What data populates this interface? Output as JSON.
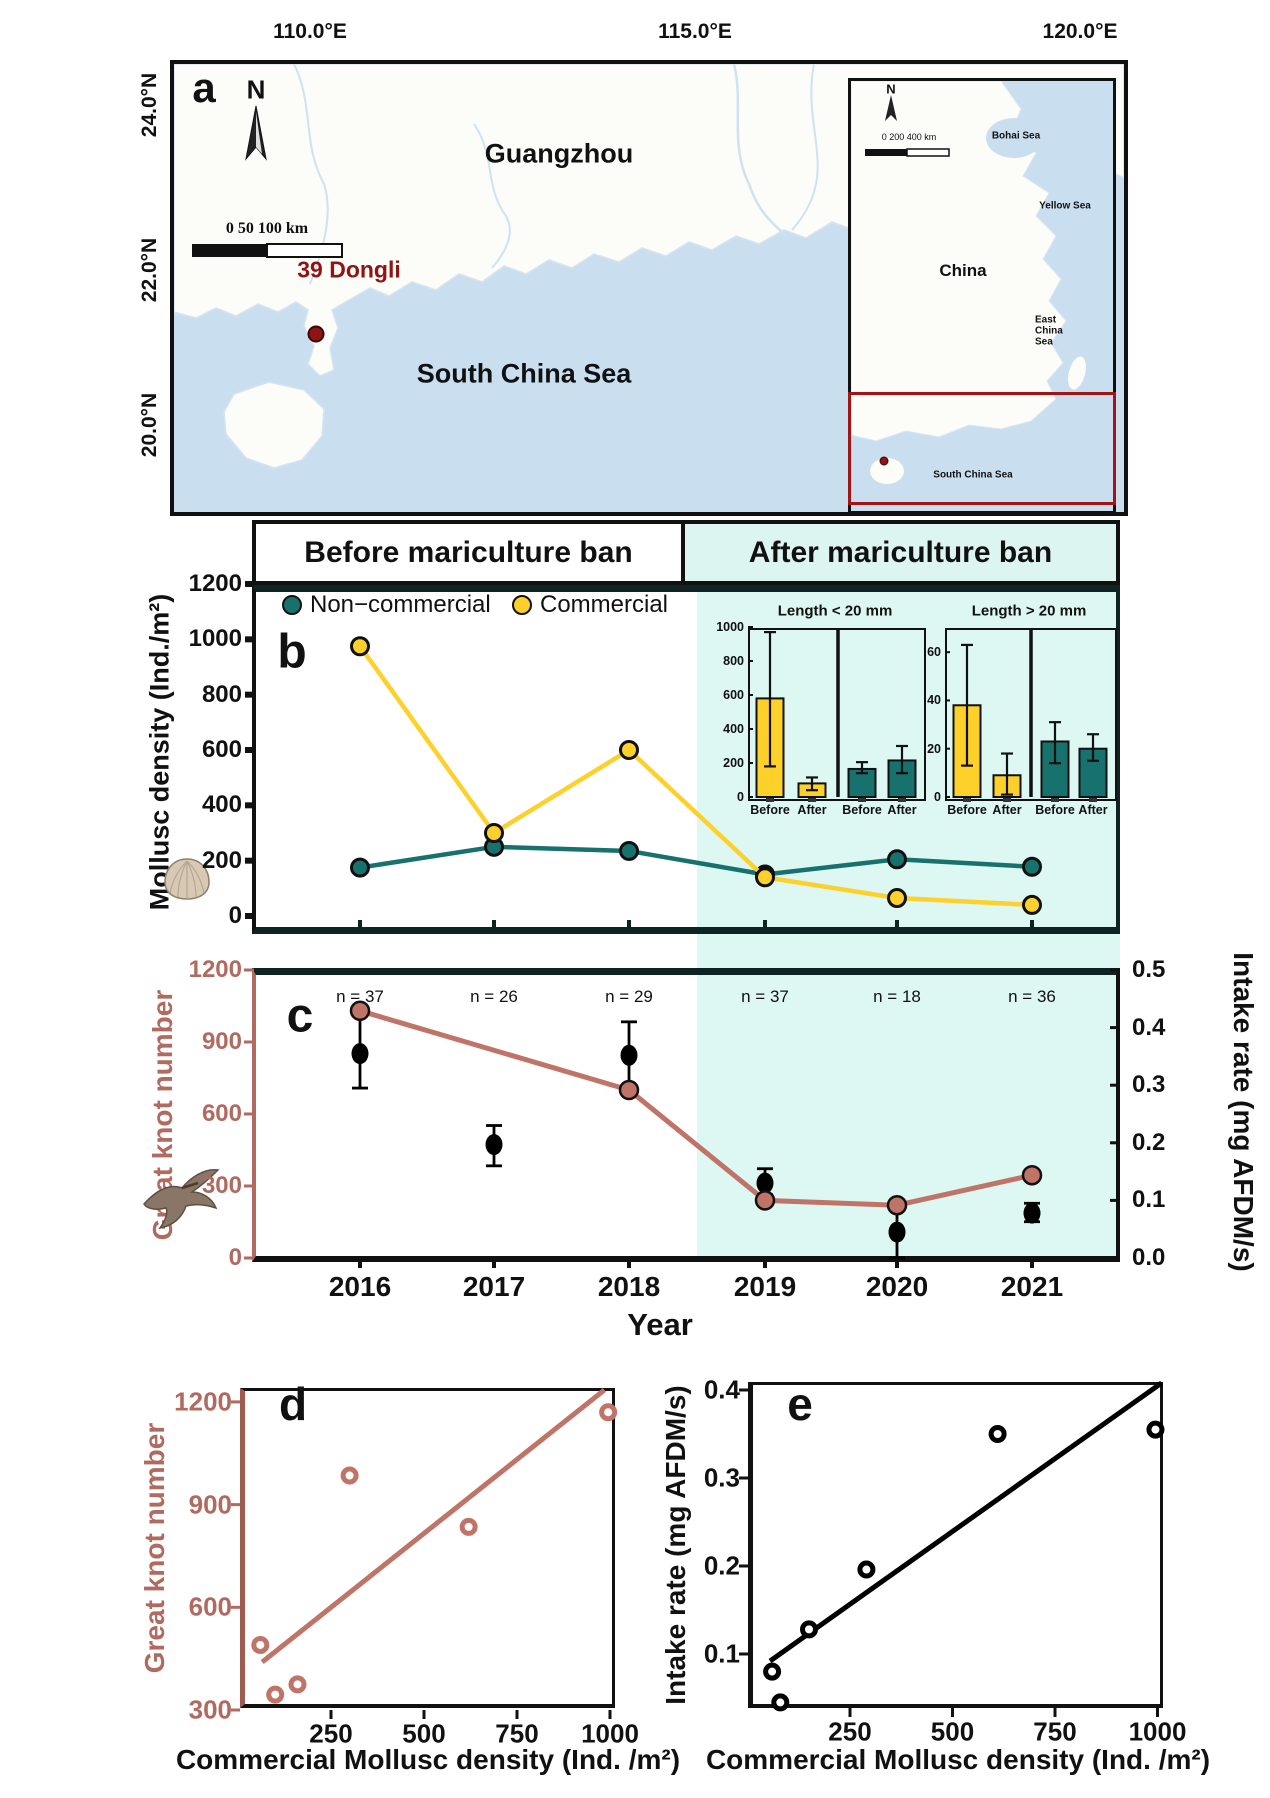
{
  "figure": {
    "colors": {
      "teal": "#17716c",
      "yellow": "#fdd02a",
      "salmon": "#c07468",
      "after_ban_bg": "#ddf7f3",
      "site_marker": "#8e1513",
      "sea": "#c9dff0"
    },
    "panel_a": {
      "label": "a",
      "top_axis_labels": [
        "110.0°E",
        "115.0°E",
        "120.0°E"
      ],
      "left_axis_labels": [
        "24.0°N",
        "22.0°N",
        "20.0°N"
      ],
      "north_label": "N",
      "scale_text": "0    50   100 km",
      "labels": {
        "city": "Guangzhou",
        "site": "39 Dongli",
        "sea": "South China Sea"
      },
      "inset": {
        "north_label": "N",
        "scale_text": "0   200   400 km",
        "country": "China",
        "seas": [
          "Bohai Sea",
          "Yellow Sea",
          "East China Sea",
          "South China Sea"
        ]
      }
    },
    "panel_b": {
      "label": "b",
      "header_before": "Before mariculture ban",
      "header_after": "After mariculture ban"
    },
    "panel_c": {
      "label": "c"
    },
    "panel_d": {
      "label": "d"
    },
    "panel_e": {
      "label": "e"
    }
  },
  "chart_data": [
    {
      "id": "b",
      "type": "line",
      "ylabel": "Mollusc density (Ind./m²)",
      "ylim": [
        0,
        1200
      ],
      "yticks": [
        0,
        200,
        400,
        600,
        800,
        1000,
        1200
      ],
      "categories": [
        "2016",
        "2017",
        "2018",
        "2019",
        "2020",
        "2021"
      ],
      "series": [
        {
          "name": "Non−commercial",
          "color": "#17716c",
          "values": [
            175,
            250,
            235,
            150,
            205,
            178
          ]
        },
        {
          "name": "Commercial",
          "color": "#fdd02a",
          "values": [
            975,
            300,
            600,
            140,
            65,
            40
          ]
        }
      ],
      "ban_divider_after_category": "2018"
    },
    {
      "id": "b_inset_small",
      "type": "bar",
      "title": "Length < 20 mm",
      "ylim": [
        0,
        1000
      ],
      "yticks": [
        0,
        200,
        400,
        600,
        800,
        1000
      ],
      "bars": [
        {
          "label": "Before",
          "group": "Commercial",
          "color": "#fdd02a",
          "value": 580,
          "err": [
            180,
            970
          ]
        },
        {
          "label": "After",
          "group": "Commercial",
          "color": "#fdd02a",
          "value": 80,
          "err": [
            40,
            115
          ]
        },
        {
          "label": "Before",
          "group": "Non-commercial",
          "color": "#17716c",
          "value": 165,
          "err": [
            140,
            205
          ]
        },
        {
          "label": "After",
          "group": "Non-commercial",
          "color": "#17716c",
          "value": 215,
          "err": [
            140,
            300
          ]
        }
      ]
    },
    {
      "id": "b_inset_large",
      "type": "bar",
      "title": "Length > 20 mm",
      "ylim": [
        0,
        70
      ],
      "yticks": [
        0,
        20,
        40,
        60
      ],
      "bars": [
        {
          "label": "Before",
          "group": "Commercial",
          "color": "#fdd02a",
          "value": 38,
          "err": [
            13,
            63
          ]
        },
        {
          "label": "After",
          "group": "Commercial",
          "color": "#fdd02a",
          "value": 9,
          "err": [
            1,
            18
          ]
        },
        {
          "label": "Before",
          "group": "Non-commercial",
          "color": "#17716c",
          "value": 23,
          "err": [
            14,
            31
          ]
        },
        {
          "label": "After",
          "group": "Non-commercial",
          "color": "#17716c",
          "value": 20,
          "err": [
            15,
            26
          ]
        }
      ]
    },
    {
      "id": "c",
      "type": "line+scatter",
      "categories": [
        "2016",
        "2017",
        "2018",
        "2019",
        "2020",
        "2021"
      ],
      "xlabel": "Year",
      "n_labels": [
        "n = 37",
        "n = 26",
        "n = 29",
        "n = 37",
        "n = 18",
        "n = 36"
      ],
      "left_axis": {
        "label": "Great knot number",
        "lim": [
          0,
          1200
        ],
        "ticks": [
          0,
          300,
          600,
          900,
          1200
        ],
        "color": "#b06a5f"
      },
      "right_axis": {
        "label": "Intake rate (mg AFDM/s)",
        "lim": [
          0,
          0.5
        ],
        "ticks": [
          "0.0",
          "0.1",
          "0.2",
          "0.3",
          "0.4",
          "0.5"
        ],
        "color": "#000000"
      },
      "great_knot_series": {
        "name": "Great knot number",
        "color": "#c07468",
        "points": [
          {
            "year": "2016",
            "value": 1030
          },
          {
            "year": "2018",
            "value": 700
          },
          {
            "year": "2019",
            "value": 240
          },
          {
            "year": "2020",
            "value": 220
          },
          {
            "year": "2021",
            "value": 345
          }
        ]
      },
      "intake_series": {
        "name": "Intake rate",
        "color": "#000000",
        "values": [
          0.355,
          0.197,
          0.352,
          0.13,
          0.045,
          0.078
        ],
        "errors": [
          [
            0.295,
            0.425
          ],
          [
            0.16,
            0.23
          ],
          [
            0.29,
            0.41
          ],
          [
            0.11,
            0.155
          ],
          [
            0.0,
            0.09
          ],
          [
            0.063,
            0.095
          ]
        ]
      }
    },
    {
      "id": "d",
      "type": "scatter",
      "color": "#c07468",
      "xlabel": "Commercial Mollusc density (Ind. /m²)",
      "ylabel": "Great knot number",
      "xlim": [
        0,
        1050
      ],
      "ylim": [
        300,
        1250
      ],
      "xticks": [
        250,
        500,
        750,
        1000
      ],
      "yticks": [
        300,
        600,
        900,
        1200
      ],
      "points": [
        [
          60,
          490
        ],
        [
          100,
          345
        ],
        [
          160,
          375
        ],
        [
          300,
          985
        ],
        [
          620,
          835
        ],
        [
          995,
          1170
        ]
      ],
      "fit_line": [
        [
          65,
          440
        ],
        [
          985,
          1235
        ]
      ]
    },
    {
      "id": "e",
      "type": "scatter",
      "color": "#000000",
      "xlabel": "Commercial Mollusc density (Ind. /m²)",
      "ylabel": "Intake rate (mg AFDM/s)",
      "xlim": [
        0,
        1050
      ],
      "ylim": [
        0.01,
        0.42
      ],
      "xticks": [
        250,
        500,
        750,
        1000
      ],
      "yticks": [
        "0.1",
        "0.2",
        "0.3",
        "0.4"
      ],
      "points": [
        [
          60,
          0.08
        ],
        [
          80,
          0.045
        ],
        [
          150,
          0.128
        ],
        [
          290,
          0.196
        ],
        [
          610,
          0.35
        ],
        [
          995,
          0.355
        ]
      ],
      "fit_line": [
        [
          55,
          0.092
        ],
        [
          1010,
          0.408
        ]
      ]
    }
  ]
}
